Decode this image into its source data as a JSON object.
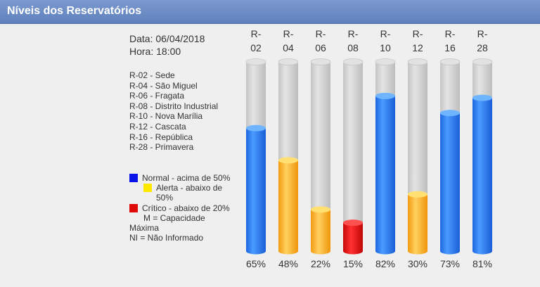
{
  "header": {
    "title": "Níveis dos Reservatórios"
  },
  "info": {
    "date": "Data: 06/04/2018",
    "time": "Hora: 18:00"
  },
  "reservoirs": [
    "R-02 - Sede",
    "R-04 - São Miguel",
    "R-06 - Fragata",
    "R-08 - Distrito Industrial",
    "R-10 - Nova Marília",
    "R-12 - Cascata",
    "R-16 - República",
    "R-28 - Primavera"
  ],
  "status_legend": {
    "normal": {
      "label": "Normal - acima de 50%",
      "color": "#0a13e8"
    },
    "alert": {
      "label_line1": "Alerta - abaixo de",
      "label_line2": "50%",
      "color": "#ffe800"
    },
    "critical": {
      "label": "Crítico - abaixo de 20%",
      "color": "#e10a0a"
    },
    "capacity_line1": "M = Capacidade",
    "capacity_line2": "Máxima",
    "not_informed": "NI = Não Informado"
  },
  "chart_data": {
    "type": "bar",
    "categories": [
      "R-02",
      "R-04",
      "R-06",
      "R-08",
      "R-10",
      "R-12",
      "R-16",
      "R-28"
    ],
    "values": [
      65,
      48,
      22,
      15,
      82,
      30,
      73,
      81
    ],
    "value_labels": [
      "65%",
      "48%",
      "22%",
      "15%",
      "82%",
      "30%",
      "73%",
      "81%"
    ],
    "ylim": [
      0,
      100
    ],
    "unit": "%",
    "colors": {
      "normal": "#2f7df0",
      "alert": "#ffb020",
      "critical": "#e01010",
      "empty": "#d4d4d4"
    }
  }
}
